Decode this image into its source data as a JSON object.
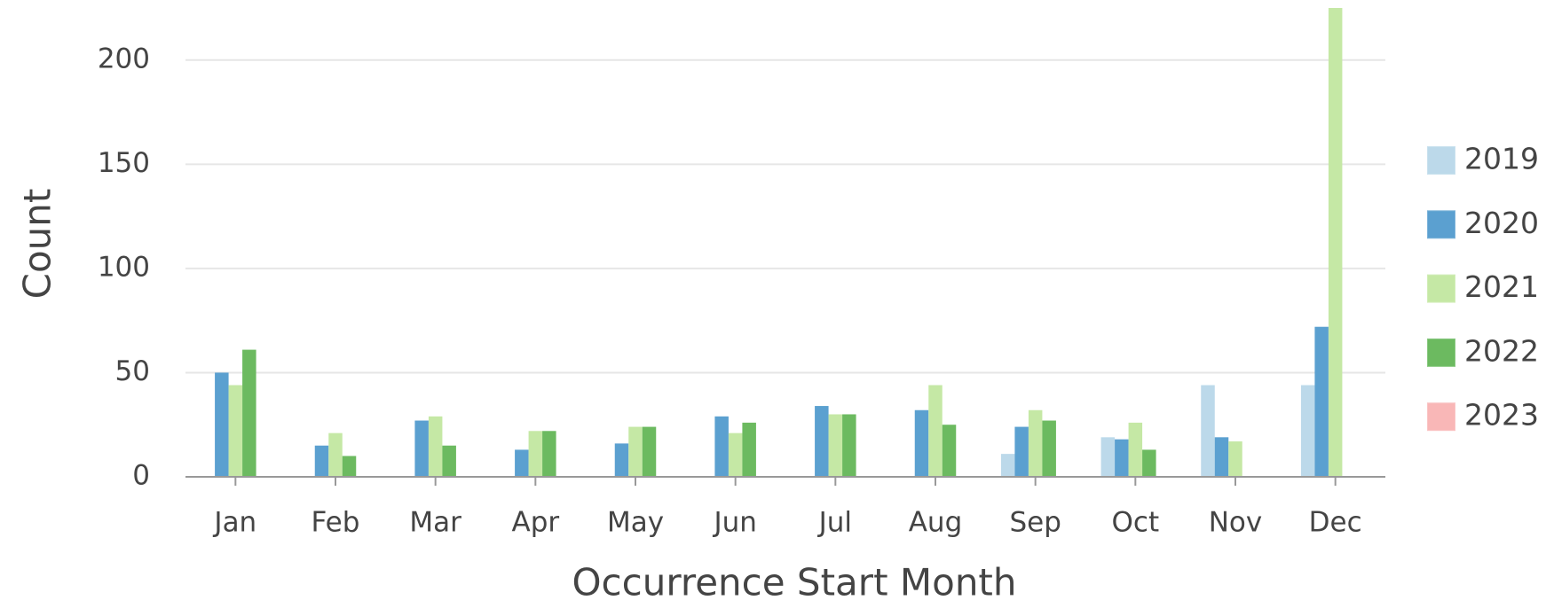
{
  "chart_data": {
    "type": "bar",
    "x_label": "Occurrence Start Month",
    "y_label": "Count",
    "categories": [
      "Jan",
      "Feb",
      "Mar",
      "Apr",
      "May",
      "Jun",
      "Jul",
      "Aug",
      "Sep",
      "Oct",
      "Nov",
      "Dec"
    ],
    "series": [
      {
        "name": "2019",
        "color": "#bcd9ea",
        "values": [
          null,
          null,
          null,
          null,
          null,
          null,
          null,
          null,
          11,
          19,
          44,
          44
        ]
      },
      {
        "name": "2020",
        "color": "#5ba0d0",
        "values": [
          50,
          15,
          27,
          13,
          16,
          29,
          34,
          32,
          24,
          18,
          19,
          72
        ]
      },
      {
        "name": "2021",
        "color": "#c5e8a5",
        "values": [
          44,
          21,
          29,
          22,
          24,
          21,
          30,
          44,
          32,
          26,
          17,
          225
        ]
      },
      {
        "name": "2022",
        "color": "#6cba60",
        "values": [
          61,
          10,
          15,
          22,
          24,
          26,
          30,
          25,
          27,
          13,
          null,
          null
        ]
      },
      {
        "name": "2023",
        "color": "#f9b7b7",
        "values": [
          null,
          null,
          null,
          null,
          null,
          null,
          null,
          null,
          null,
          null,
          null,
          null
        ]
      }
    ],
    "ylim": [
      0,
      225
    ],
    "yticks": [
      0,
      50,
      100,
      150,
      200
    ],
    "grid": true,
    "legend": "right"
  }
}
